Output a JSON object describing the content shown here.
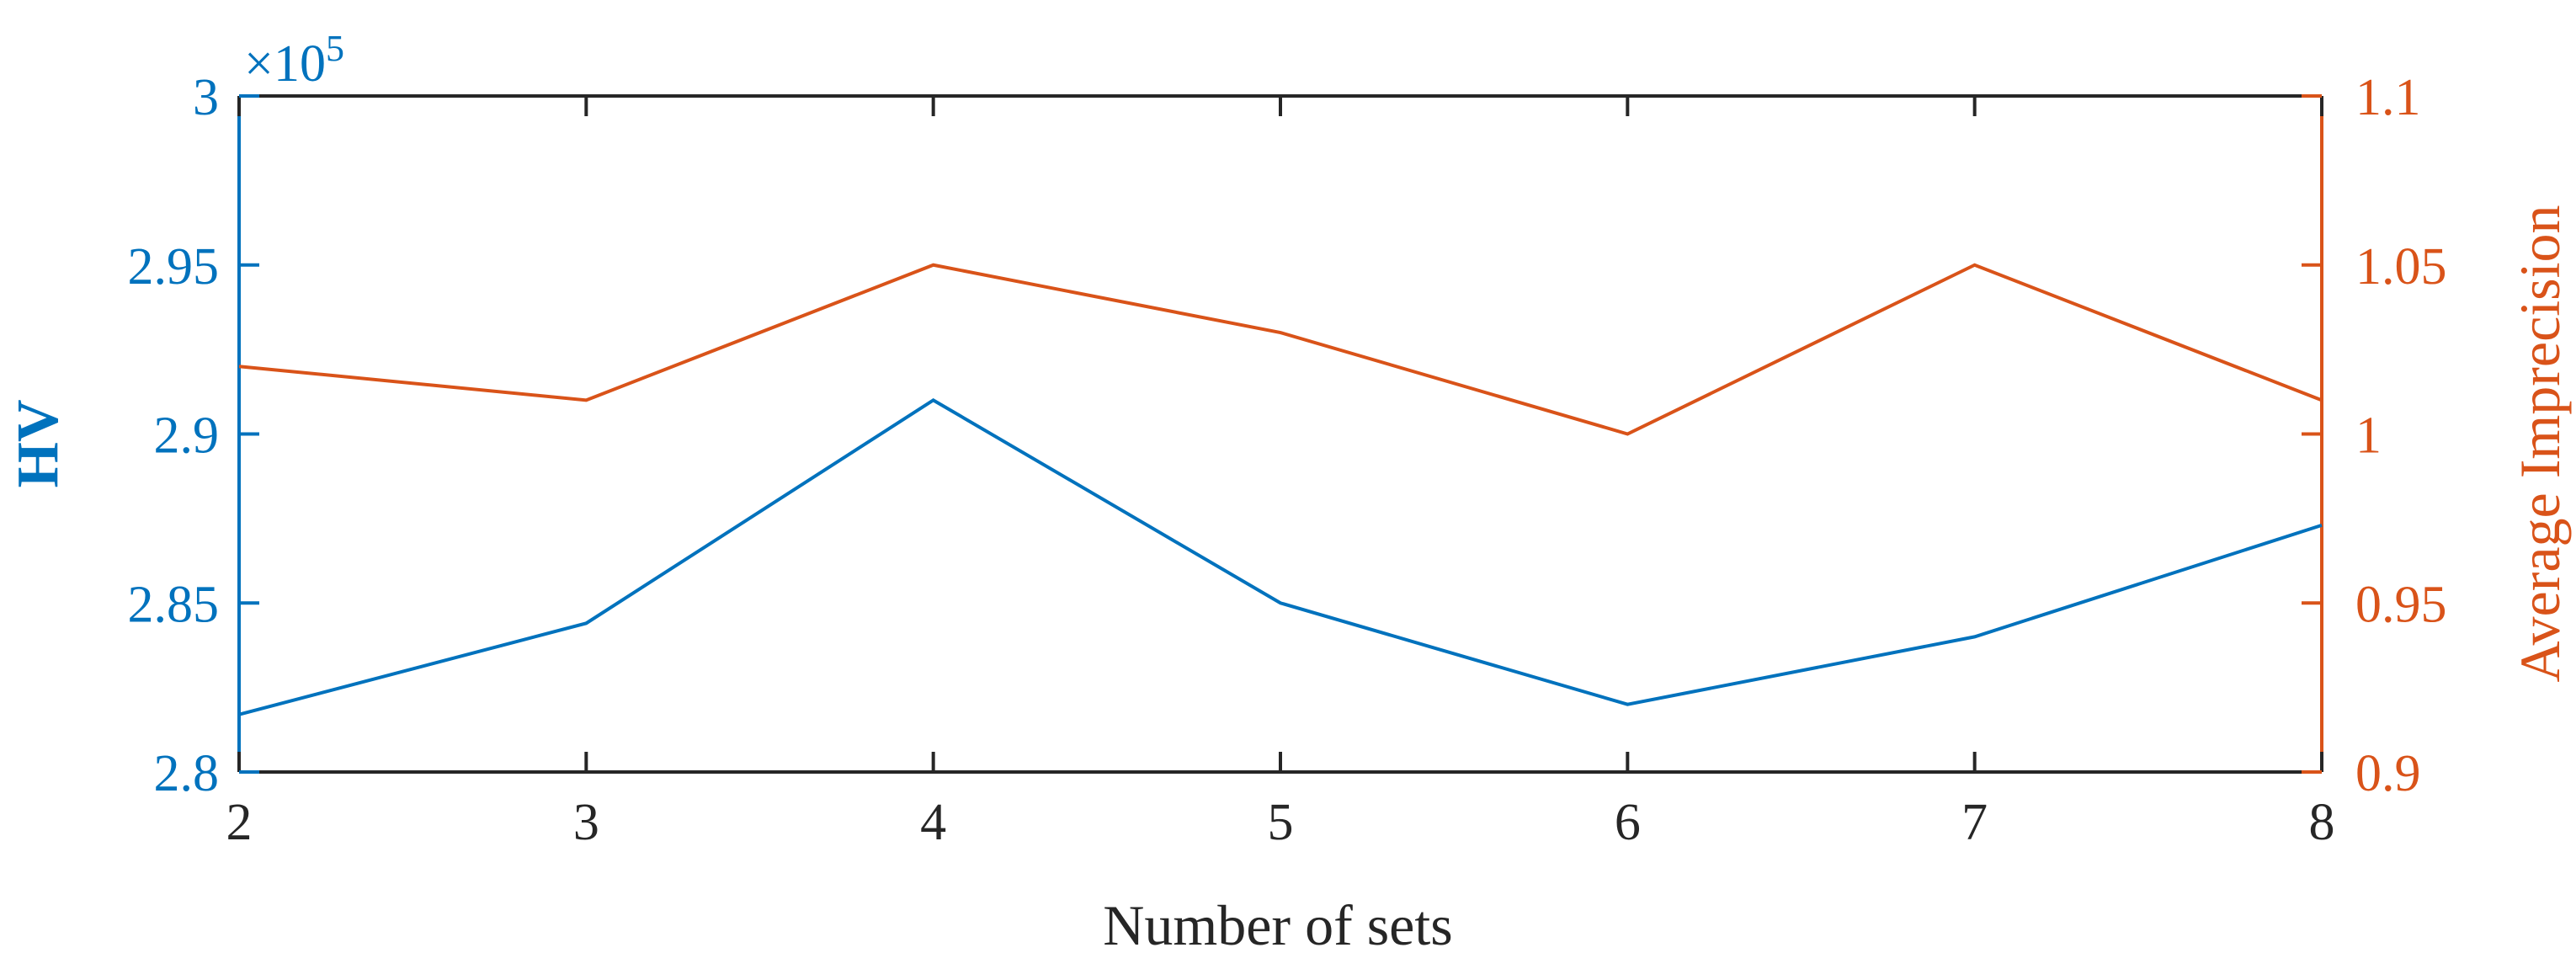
{
  "chart_data": {
    "type": "line",
    "x": [
      2,
      3,
      4,
      5,
      6,
      7,
      8
    ],
    "xlabel": "Number of sets",
    "xlim": [
      2,
      8
    ],
    "xticks": [
      "2",
      "3",
      "4",
      "5",
      "6",
      "7",
      "8"
    ],
    "grid": false,
    "legend": "none",
    "y_left": {
      "label": "HV",
      "color": "#0072BD",
      "multiplier_label": "×10",
      "multiplier_exponent": "5",
      "ylim": [
        2.8,
        3.0
      ],
      "ticks": [
        2.8,
        2.85,
        2.9,
        2.95,
        3.0
      ],
      "tick_labels": [
        "2.8",
        "2.85",
        "2.9",
        "2.95",
        "3"
      ]
    },
    "y_right": {
      "label": "Average Imprecision",
      "color": "#D95319",
      "ylim": [
        0.9,
        1.1
      ],
      "ticks": [
        0.9,
        0.95,
        1.0,
        1.05,
        1.1
      ],
      "tick_labels": [
        "0.9",
        "0.95",
        "1",
        "1.05",
        "1.1"
      ]
    },
    "series": [
      {
        "axis": "left",
        "color": "#0072BD",
        "values": [
          2.817,
          2.844,
          2.91,
          2.85,
          2.82,
          2.84,
          2.873
        ]
      },
      {
        "axis": "right",
        "color": "#D95319",
        "values": [
          1.02,
          1.01,
          1.05,
          1.03,
          1.0,
          1.05,
          1.01
        ]
      }
    ]
  }
}
